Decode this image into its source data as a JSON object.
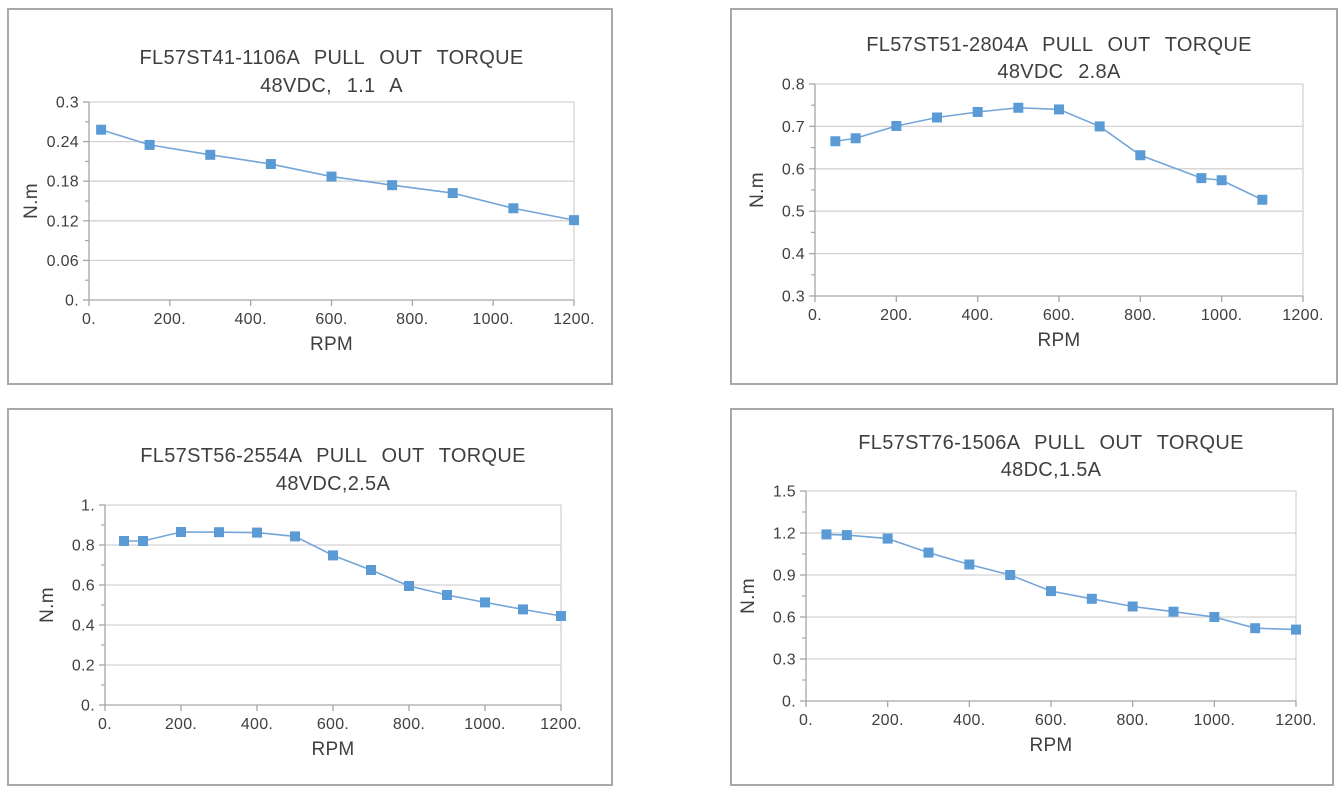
{
  "page": {
    "background": "#ffffff",
    "description_colors": {
      "marker_blue": "#5b9bd5",
      "line_blue": "#74a5d8",
      "gridline_gray": "#d2d2d2",
      "axis_gray": "#a6a6a6",
      "text_gray": "#3f3f3f",
      "panel_border_gray": "#a8a8a8"
    }
  },
  "chart_data": [
    {
      "type": "line",
      "title": "FL57ST41-1106A PULL OUT TORQUE",
      "subtitle": "48VDC, 1.1 A",
      "xlabel": "RPM",
      "ylabel": "N.m",
      "x_range": [
        0,
        1200
      ],
      "y_range": [
        0,
        0.3
      ],
      "x_tick_values": [
        0,
        200,
        400,
        600,
        800,
        1000,
        1200
      ],
      "x_tick_labels": [
        "0.",
        "200.",
        "400.",
        "600.",
        "800.",
        "1000.",
        "1200."
      ],
      "y_tick_values": [
        0,
        0.06,
        0.12,
        0.18,
        0.24,
        0.3
      ],
      "y_tick_labels": [
        "0.",
        "0.06",
        "0.12",
        "0.18",
        "0.24",
        "0.3"
      ],
      "x": [
        30,
        150,
        300,
        450,
        600,
        750,
        900,
        1050,
        1200
      ],
      "y": [
        0.258,
        0.235,
        0.22,
        0.206,
        0.187,
        0.174,
        0.162,
        0.139,
        0.121
      ],
      "grid": true,
      "legend": "none",
      "marker": "square"
    },
    {
      "type": "line",
      "title": "FL57ST51-2804A PULL OUT TORQUE",
      "subtitle": "48VDC 2.8A",
      "xlabel": "RPM",
      "ylabel": "N.m",
      "x_range": [
        0,
        1200
      ],
      "y_range": [
        0.3,
        0.8
      ],
      "x_tick_values": [
        0,
        200,
        400,
        600,
        800,
        1000,
        1200
      ],
      "x_tick_labels": [
        "0.",
        "200.",
        "400.",
        "600.",
        "800.",
        "1000.",
        "1200."
      ],
      "y_tick_values": [
        0.3,
        0.4,
        0.5,
        0.6,
        0.7,
        0.8
      ],
      "y_tick_labels": [
        "0.3",
        "0.4",
        "0.5",
        "0.6",
        "0.7",
        "0.8"
      ],
      "x": [
        50,
        100,
        200,
        300,
        400,
        500,
        600,
        700,
        800,
        950,
        1000,
        1100
      ],
      "y": [
        0.665,
        0.672,
        0.701,
        0.721,
        0.734,
        0.744,
        0.74,
        0.7,
        0.632,
        0.578,
        0.573,
        0.527
      ],
      "grid": true,
      "legend": "none",
      "marker": "square"
    },
    {
      "type": "line",
      "title": "FL57ST56-2554A PULL OUT TORQUE",
      "subtitle": "48VDC,2.5A",
      "xlabel": "RPM",
      "ylabel": "N.m",
      "x_range": [
        0,
        1200
      ],
      "y_range": [
        0,
        1.0
      ],
      "x_tick_values": [
        0,
        200,
        400,
        600,
        800,
        1000,
        1200
      ],
      "x_tick_labels": [
        "0.",
        "200.",
        "400.",
        "600.",
        "800.",
        "1000.",
        "1200."
      ],
      "y_tick_values": [
        0,
        0.2,
        0.4,
        0.6,
        0.8,
        1.0
      ],
      "y_tick_labels": [
        "0.",
        "0.2",
        "0.4",
        "0.6",
        "0.8",
        "1."
      ],
      "x": [
        50,
        100,
        200,
        300,
        400,
        500,
        600,
        700,
        800,
        900,
        1000,
        1100,
        1200
      ],
      "y": [
        0.82,
        0.82,
        0.865,
        0.864,
        0.862,
        0.843,
        0.748,
        0.675,
        0.595,
        0.55,
        0.513,
        0.478,
        0.445
      ],
      "grid": true,
      "legend": "none",
      "marker": "square"
    },
    {
      "type": "line",
      "title": "FL57ST76-1506A PULL OUT TORQUE",
      "subtitle": "48DC,1.5A",
      "xlabel": "RPM",
      "ylabel": "N.m",
      "x_range": [
        0,
        1200
      ],
      "y_range": [
        0,
        1.5
      ],
      "x_tick_values": [
        0,
        200,
        400,
        600,
        800,
        1000,
        1200
      ],
      "x_tick_labels": [
        "0.",
        "200.",
        "400.",
        "600.",
        "800.",
        "1000.",
        "1200."
      ],
      "y_tick_values": [
        0,
        0.3,
        0.6,
        0.9,
        1.2,
        1.5
      ],
      "y_tick_labels": [
        "0.",
        "0.3",
        "0.6",
        "0.9",
        "1.2",
        "1.5"
      ],
      "x": [
        50,
        100,
        200,
        300,
        400,
        500,
        600,
        700,
        800,
        900,
        1000,
        1100,
        1200
      ],
      "y": [
        1.19,
        1.185,
        1.16,
        1.06,
        0.975,
        0.9,
        0.785,
        0.73,
        0.675,
        0.638,
        0.6,
        0.52,
        0.51
      ],
      "grid": true,
      "legend": "none",
      "marker": "square"
    }
  ]
}
